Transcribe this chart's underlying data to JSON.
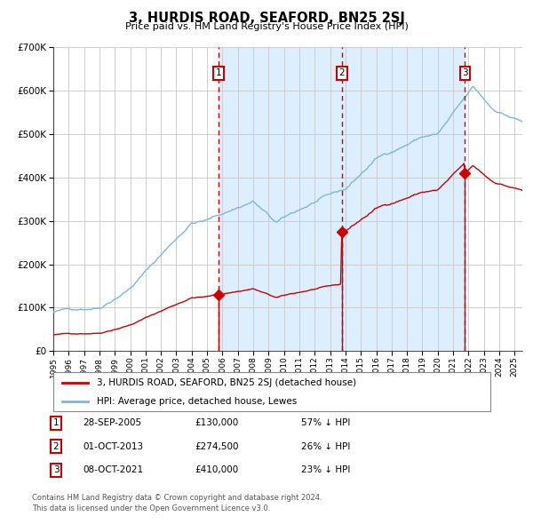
{
  "title": "3, HURDIS ROAD, SEAFORD, BN25 2SJ",
  "subtitle": "Price paid vs. HM Land Registry's House Price Index (HPI)",
  "legend_line1": "3, HURDIS ROAD, SEAFORD, BN25 2SJ (detached house)",
  "legend_line2": "HPI: Average price, detached house, Lewes",
  "footnote1": "Contains HM Land Registry data © Crown copyright and database right 2024.",
  "footnote2": "This data is licensed under the Open Government Licence v3.0.",
  "sales": [
    {
      "num": 1,
      "date_label": "28-SEP-2005",
      "price": 130000,
      "hpi_pct": "57% ↓ HPI",
      "x_year": 2005.75
    },
    {
      "num": 2,
      "date_label": "01-OCT-2013",
      "price": 274500,
      "hpi_pct": "26% ↓ HPI",
      "x_year": 2013.75
    },
    {
      "num": 3,
      "date_label": "08-OCT-2021",
      "price": 410000,
      "hpi_pct": "23% ↓ HPI",
      "x_year": 2021.77
    }
  ],
  "hpi_line_color": "#7ab8d9",
  "sale_color": "#cc0000",
  "shade_color": "#ddeeff",
  "background_color": "#ffffff",
  "grid_color": "#c8c8c8",
  "x_start": 1995.0,
  "x_end": 2025.5,
  "y_min": 0,
  "y_max": 700000,
  "y_ticks": [
    0,
    100000,
    200000,
    300000,
    400000,
    500000,
    600000,
    700000
  ],
  "x_ticks": [
    1995,
    1996,
    1997,
    1998,
    1999,
    2000,
    2001,
    2002,
    2003,
    2004,
    2005,
    2006,
    2007,
    2008,
    2009,
    2010,
    2011,
    2012,
    2013,
    2014,
    2015,
    2016,
    2017,
    2018,
    2019,
    2020,
    2021,
    2022,
    2023,
    2024,
    2025
  ]
}
